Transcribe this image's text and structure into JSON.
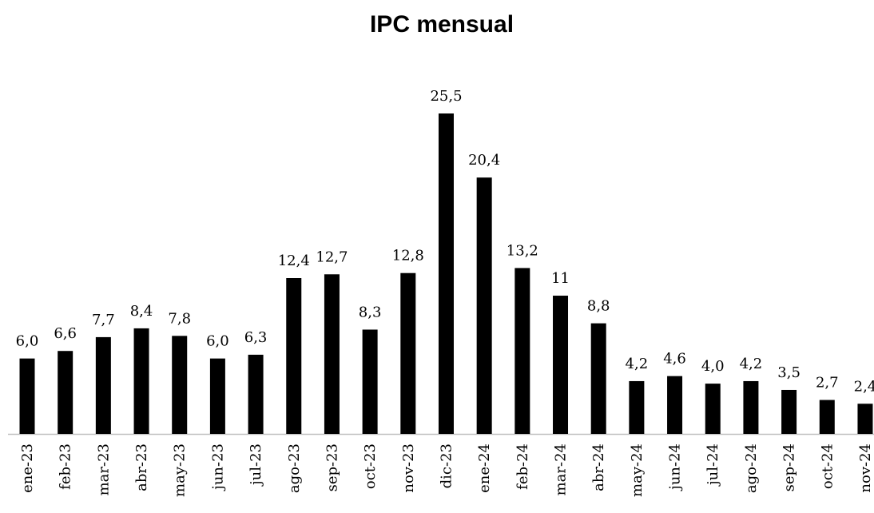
{
  "chart_data": {
    "type": "bar",
    "title": "IPC mensual",
    "categories": [
      "ene-23",
      "feb-23",
      "mar-23",
      "abr-23",
      "may-23",
      "jun-23",
      "jul-23",
      "ago-23",
      "sep-23",
      "oct-23",
      "nov-23",
      "dic-23",
      "ene-24",
      "feb-24",
      "mar-24",
      "abr-24",
      "may-24",
      "jun-24",
      "jul-24",
      "ago-24",
      "sep-24",
      "oct-24",
      "nov-24"
    ],
    "values": [
      6.0,
      6.6,
      7.7,
      8.4,
      7.8,
      6.0,
      6.3,
      12.4,
      12.7,
      8.3,
      12.8,
      25.5,
      20.4,
      13.2,
      11,
      8.8,
      4.2,
      4.6,
      4.0,
      4.2,
      3.5,
      2.7,
      2.4
    ],
    "value_labels": [
      "6,0",
      "6,6",
      "7,7",
      "8,4",
      "7,8",
      "6,0",
      "6,3",
      "12,4",
      "12,7",
      "8,3",
      "12,8",
      "25,5",
      "20,4",
      "13,2",
      "11",
      "8,8",
      "4,2",
      "4,6",
      "4,0",
      "4,2",
      "3,5",
      "2,7",
      "2,4"
    ],
    "color": "#000000"
  }
}
